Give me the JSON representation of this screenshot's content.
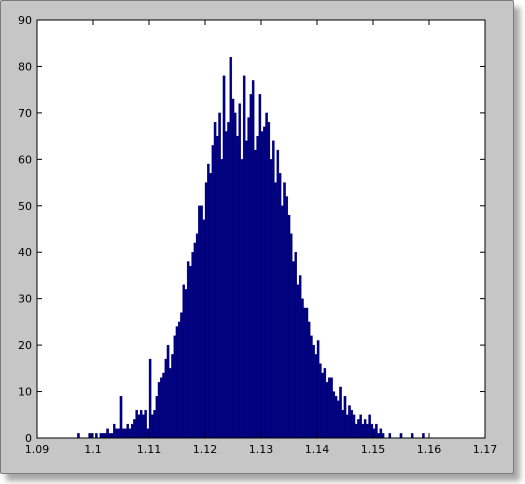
{
  "chart_data": {
    "type": "bar",
    "title": "",
    "xlabel": "",
    "ylabel": "",
    "xlim": [
      1.09,
      1.17
    ],
    "ylim": [
      0,
      90
    ],
    "x_ticks": [
      "1.09",
      "1.1",
      "1.11",
      "1.12",
      "1.13",
      "1.14",
      "1.15",
      "1.16",
      "1.17"
    ],
    "y_ticks": [
      "0",
      "10",
      "20",
      "30",
      "40",
      "50",
      "60",
      "70",
      "80",
      "90"
    ],
    "bin_width": 0.0004,
    "bar_color": "#00007f",
    "grid": false,
    "legend": "none",
    "x": [
      1.0974,
      1.0994,
      1.0998,
      1.1006,
      1.1014,
      1.1018,
      1.1022,
      1.1026,
      1.103,
      1.1034,
      1.1038,
      1.1042,
      1.1046,
      1.105,
      1.1054,
      1.1058,
      1.1062,
      1.1066,
      1.107,
      1.1074,
      1.1078,
      1.1082,
      1.1086,
      1.109,
      1.1094,
      1.1098,
      1.1102,
      1.1106,
      1.111,
      1.1114,
      1.1118,
      1.1122,
      1.1126,
      1.113,
      1.1134,
      1.1138,
      1.1142,
      1.1146,
      1.115,
      1.1154,
      1.1158,
      1.1162,
      1.1166,
      1.117,
      1.1174,
      1.1178,
      1.1182,
      1.1186,
      1.119,
      1.1194,
      1.1198,
      1.1202,
      1.1206,
      1.121,
      1.1214,
      1.1218,
      1.1222,
      1.1226,
      1.123,
      1.1234,
      1.1238,
      1.1242,
      1.1246,
      1.125,
      1.1254,
      1.1258,
      1.1262,
      1.1266,
      1.127,
      1.1274,
      1.1278,
      1.1282,
      1.1286,
      1.129,
      1.1294,
      1.1298,
      1.1302,
      1.1306,
      1.131,
      1.1314,
      1.1318,
      1.1322,
      1.1326,
      1.133,
      1.1334,
      1.1338,
      1.1342,
      1.1346,
      1.135,
      1.1354,
      1.1358,
      1.1362,
      1.1366,
      1.137,
      1.1374,
      1.1378,
      1.1382,
      1.1386,
      1.139,
      1.1394,
      1.1398,
      1.1402,
      1.1406,
      1.141,
      1.1414,
      1.1418,
      1.1422,
      1.1426,
      1.143,
      1.1434,
      1.1438,
      1.1442,
      1.1446,
      1.145,
      1.1454,
      1.1458,
      1.1462,
      1.1466,
      1.147,
      1.1474,
      1.1478,
      1.1482,
      1.1486,
      1.149,
      1.1494,
      1.1498,
      1.1502,
      1.1506,
      1.151,
      1.1514,
      1.1518,
      1.153,
      1.155,
      1.157,
      1.159
    ],
    "values": [
      1,
      1,
      1,
      1,
      1,
      1,
      1,
      2,
      1,
      1,
      3,
      2,
      2,
      9,
      2,
      2,
      3,
      2,
      3,
      4,
      6,
      5,
      6,
      5,
      6,
      2,
      17,
      5,
      6,
      9,
      12,
      13,
      14,
      17,
      20,
      15,
      18,
      22,
      24,
      25,
      27,
      33,
      32,
      38,
      37,
      40,
      42,
      44,
      50,
      50,
      47,
      55,
      59,
      57,
      63,
      68,
      65,
      70,
      60,
      78,
      66,
      68,
      82,
      73,
      70,
      65,
      72,
      60,
      78,
      64,
      69,
      74,
      77,
      62,
      65,
      74,
      66,
      67,
      70,
      68,
      60,
      64,
      55,
      62,
      57,
      50,
      55,
      52,
      48,
      44,
      38,
      40,
      33,
      35,
      30,
      28,
      28,
      25,
      22,
      20,
      18,
      21,
      16,
      14,
      15,
      12,
      13,
      13,
      10,
      9,
      8,
      11,
      6,
      9,
      5,
      7,
      6,
      5,
      3,
      4,
      5,
      3,
      4,
      3,
      5,
      3,
      2,
      3,
      1,
      2,
      1,
      1,
      1,
      1,
      1
    ]
  }
}
